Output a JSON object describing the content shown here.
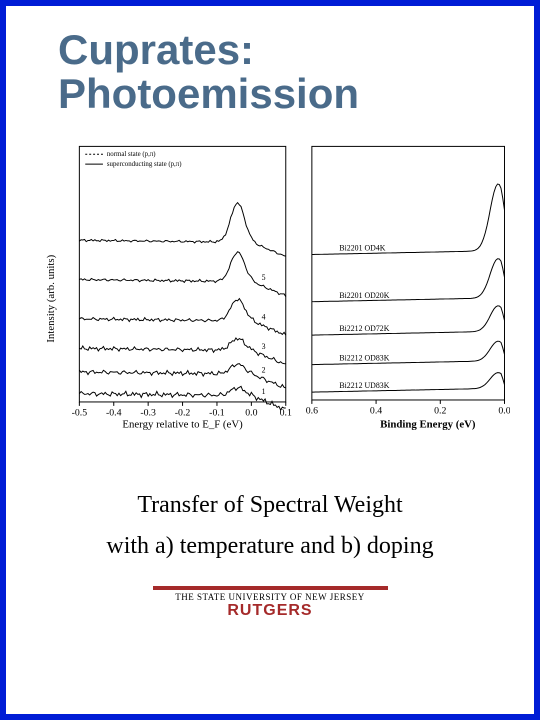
{
  "title": "Cuprates:\nPhotoemission",
  "title_color": "#4a6b8a",
  "title_fontsize": 42,
  "frame_color": "#001dd6",
  "caption_line1": "Transfer of Spectral Weight",
  "caption_line2": "with  a)  temperature and b) doping",
  "caption_fontsize": 24,
  "univ_line": "THE STATE UNIVERSITY OF NEW JERSEY",
  "rutgers": "RUTGERS",
  "rutgers_color": "#a52a2a",
  "chart_a": {
    "type": "line-stack",
    "ylabel": "Intensity (arb. units)",
    "xlabel": "Energy relative to E_F (eV)",
    "xlim": [
      -0.5,
      0.1
    ],
    "xticks": [
      -0.5,
      -0.4,
      -0.3,
      -0.2,
      -0.1,
      0.0,
      0.1
    ],
    "xticklabels": [
      "-0.5",
      "-0.4",
      "-0.3",
      "-0.2",
      "-0.1",
      "0.0",
      "0.1"
    ],
    "legend": [
      "normal state (p,π)",
      "superconducting state (p,π)"
    ],
    "series_numbers": [
      "1",
      "2",
      "3",
      "4",
      "5"
    ],
    "axis_color": "#000000",
    "line_color": "#000000",
    "background_color": "#ffffff",
    "curves": [
      {
        "offset": 0,
        "peak_x": -0.04,
        "peak_h": 8,
        "noise": 2.2
      },
      {
        "offset": 22,
        "peak_x": -0.04,
        "peak_h": 10,
        "noise": 2.0
      },
      {
        "offset": 46,
        "peak_x": -0.04,
        "peak_h": 12,
        "noise": 1.8
      },
      {
        "offset": 76,
        "peak_x": -0.04,
        "peak_h": 22,
        "noise": 1.5
      },
      {
        "offset": 116,
        "peak_x": -0.04,
        "peak_h": 30,
        "noise": 1.2
      },
      {
        "offset": 156,
        "peak_x": -0.04,
        "peak_h": 40,
        "noise": 1.0
      }
    ]
  },
  "chart_b": {
    "type": "line-stack",
    "xlabel": "Binding Energy (eV)",
    "xlim": [
      0.6,
      0.0
    ],
    "xticks": [
      0.6,
      0.4,
      0.2,
      0.0
    ],
    "xticklabels": [
      "0.6",
      "0.4",
      "0.2",
      "0.0"
    ],
    "series_labels": [
      "Bi2201 OD4K",
      "Bi2201 OD20K",
      "Bi2212 OD72K",
      "Bi2212 OD83K",
      "Bi2212 UD83K"
    ],
    "axis_color": "#000000",
    "line_color": "#000000",
    "background_color": "#ffffff",
    "curves": [
      {
        "offset": 0,
        "peak_h": 16
      },
      {
        "offset": 28,
        "peak_h": 20
      },
      {
        "offset": 58,
        "peak_h": 26
      },
      {
        "offset": 92,
        "peak_h": 40
      },
      {
        "offset": 140,
        "peak_h": 68
      }
    ]
  }
}
